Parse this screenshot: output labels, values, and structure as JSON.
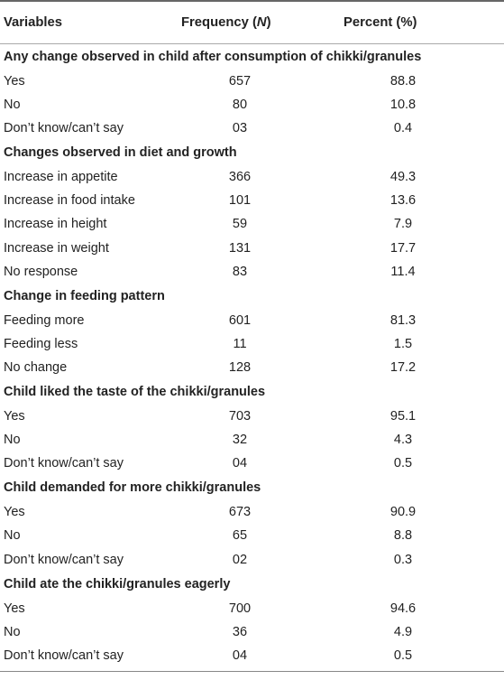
{
  "header": {
    "col1": "Variables",
    "col2_prefix": "Frequency (",
    "col2_italic": "N",
    "col2_suffix": ")",
    "col3": "Percent (%)"
  },
  "sections": [
    {
      "title": "Any change observed in child after consumption of chikki/granules",
      "rows": [
        {
          "label": "Yes",
          "freq": "657",
          "pct": "88.8"
        },
        {
          "label": "No",
          "freq": "80",
          "pct": "10.8"
        },
        {
          "label": "Don’t know/can’t say",
          "freq": "03",
          "pct": "0.4"
        }
      ]
    },
    {
      "title": "Changes observed in diet and growth",
      "rows": [
        {
          "label": "Increase in appetite",
          "freq": "366",
          "pct": "49.3"
        },
        {
          "label": "Increase in food intake",
          "freq": "101",
          "pct": "13.6"
        },
        {
          "label": "Increase in height",
          "freq": "59",
          "pct": "7.9"
        },
        {
          "label": "Increase in weight",
          "freq": "131",
          "pct": "17.7"
        },
        {
          "label": "No response",
          "freq": "83",
          "pct": "11.4"
        }
      ]
    },
    {
      "title": "Change in feeding pattern",
      "rows": [
        {
          "label": "Feeding more",
          "freq": "601",
          "pct": "81.3"
        },
        {
          "label": "Feeding less",
          "freq": "11",
          "pct": "1.5"
        },
        {
          "label": "No change",
          "freq": "128",
          "pct": "17.2"
        }
      ]
    },
    {
      "title": "Child liked the taste of the chikki/granules",
      "rows": [
        {
          "label": "Yes",
          "freq": "703",
          "pct": "95.1"
        },
        {
          "label": "No",
          "freq": "32",
          "pct": "4.3"
        },
        {
          "label": "Don’t know/can’t say",
          "freq": "04",
          "pct": "0.5"
        }
      ]
    },
    {
      "title": "Child demanded for more chikki/granules",
      "rows": [
        {
          "label": "Yes",
          "freq": "673",
          "pct": "90.9"
        },
        {
          "label": "No",
          "freq": "65",
          "pct": "8.8"
        },
        {
          "label": "Don’t know/can’t say",
          "freq": "02",
          "pct": "0.3"
        }
      ]
    },
    {
      "title": "Child ate the chikki/granules eagerly",
      "rows": [
        {
          "label": "Yes",
          "freq": "700",
          "pct": "94.6"
        },
        {
          "label": "No",
          "freq": "36",
          "pct": "4.9"
        },
        {
          "label": "Don’t know/can’t say",
          "freq": "04",
          "pct": "0.5"
        }
      ]
    }
  ]
}
